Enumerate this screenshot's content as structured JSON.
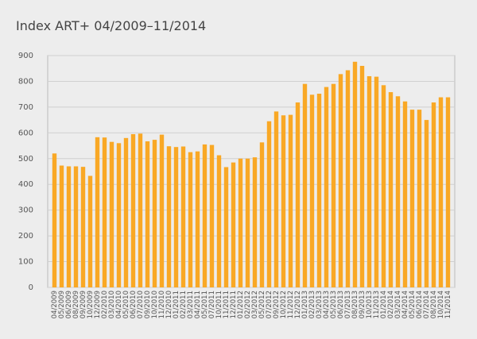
{
  "chart_data": {
    "type": "bar",
    "title": "Index ART+ 04/2009–11/2014",
    "categories": [
      "04/2009",
      "05/2009",
      "06/2009",
      "08/2009",
      "09/2009",
      "10/2009",
      "12/2009",
      "02/2010",
      "03/2010",
      "04/2010",
      "05/2010",
      "06/2010",
      "07/2010",
      "09/2010",
      "10/2010",
      "11/2010",
      "12/2010",
      "01/2011",
      "02/2011",
      "03/2011",
      "04/2011",
      "05/2011",
      "07/2011",
      "10/2011",
      "11/2011",
      "12/2011",
      "01/2012",
      "02/2012",
      "03/2012",
      "05/2012",
      "07/2012",
      "09/2012",
      "10/2012",
      "11/2012",
      "12/2012",
      "01/2013",
      "02/2013",
      "03/2013",
      "04/2013",
      "05/2013",
      "06/2013",
      "07/2013",
      "08/2013",
      "09/2013",
      "10/2013",
      "11/2013",
      "01/2014",
      "02/2014",
      "03/2014",
      "04/2014",
      "05/2014",
      "06/2014",
      "07/2014",
      "08/2014",
      "10/2014",
      "11/2014"
    ],
    "values": [
      520,
      473,
      470,
      470,
      468,
      433,
      583,
      582,
      565,
      560,
      580,
      595,
      597,
      567,
      573,
      593,
      548,
      545,
      547,
      525,
      528,
      555,
      553,
      513,
      467,
      485,
      500,
      500,
      505,
      563,
      645,
      683,
      668,
      670,
      718,
      790,
      748,
      752,
      778,
      790,
      828,
      843,
      876,
      860,
      820,
      818,
      785,
      758,
      742,
      722,
      690,
      690,
      650,
      718,
      738,
      738
    ],
    "color": "#f9a825",
    "ylim": [
      0,
      900
    ],
    "yticks": [
      0,
      100,
      200,
      300,
      400,
      500,
      600,
      700,
      800,
      900
    ],
    "grid": true
  }
}
